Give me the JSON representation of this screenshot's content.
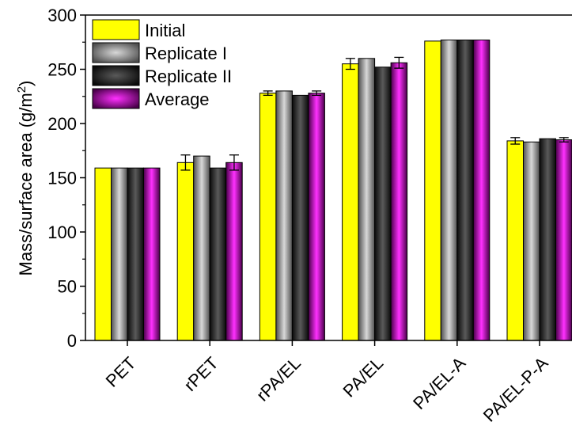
{
  "chart_data": {
    "type": "bar",
    "title": "",
    "xlabel": "",
    "ylabel": "Mass/surface area (g/m",
    "ylabel_sup": "2",
    "ylabel_suffix": ")",
    "ylim": [
      0,
      300
    ],
    "yticks": [
      0,
      50,
      100,
      150,
      200,
      250,
      300
    ],
    "grid": false,
    "legend_position": "top-left",
    "categories": [
      "PET",
      "rPET",
      "rPA/EL",
      "PA/EL",
      "PA/EL-A",
      "PA/EL-P-A"
    ],
    "series": [
      {
        "name": "Initial",
        "color": "#ffff00",
        "values": [
          159,
          164,
          228,
          255,
          276,
          184
        ],
        "errors": [
          0,
          7,
          2,
          5,
          0,
          3
        ]
      },
      {
        "name": "Replicate I",
        "color": "#7f7f7f",
        "values": [
          159,
          170,
          230,
          260,
          277,
          183
        ],
        "errors": [
          0,
          0,
          0,
          0,
          0,
          0
        ]
      },
      {
        "name": "Replicate II",
        "color": "#2b2b2b",
        "values": [
          159,
          159,
          226,
          252,
          277,
          186
        ],
        "errors": [
          0,
          0,
          0,
          0,
          0,
          0
        ]
      },
      {
        "name": "Average",
        "color": "#b000b0",
        "values": [
          159,
          164,
          228,
          256,
          277,
          185
        ],
        "errors": [
          0,
          7,
          2,
          5,
          0,
          2
        ]
      }
    ]
  }
}
